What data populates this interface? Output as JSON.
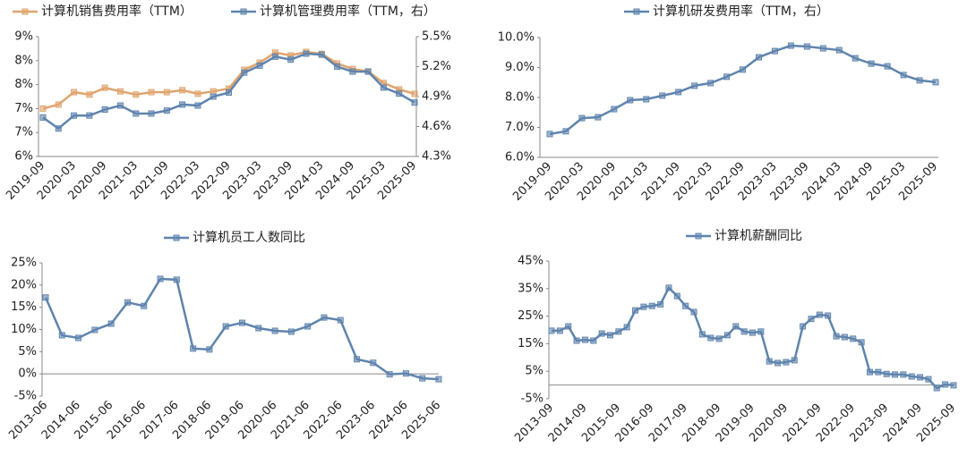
{
  "chart_data": [
    {
      "type": "line",
      "legend": "top",
      "categories": [
        "2019-09",
        null,
        "2020-03",
        null,
        "2020-09",
        null,
        "2021-03",
        null,
        "2021-09",
        null,
        "2022-03",
        null,
        "2022-09",
        null,
        "2023-03",
        null,
        "2023-09",
        null,
        "2024-03",
        null,
        "2024-09",
        null,
        "2025-03",
        null,
        "2025-09"
      ],
      "series": [
        {
          "name": "计算机销售费用率（TTM）",
          "color": "#e0a46e",
          "values": [
            7.2,
            7.3,
            7.61,
            7.55,
            7.72,
            7.63,
            7.55,
            7.61,
            7.61,
            7.66,
            7.57,
            7.63,
            7.7,
            8.17,
            8.35,
            8.6,
            8.53,
            8.62,
            8.57,
            8.33,
            8.19,
            8.13,
            7.84,
            7.68,
            7.57
          ]
        },
        {
          "name": "计算机管理费用率（TTM，右）",
          "color": "#5f84ad",
          "axis": "y2",
          "values": [
            4.69,
            4.58,
            4.71,
            4.71,
            4.77,
            4.81,
            4.73,
            4.73,
            4.76,
            4.82,
            4.81,
            4.9,
            4.94,
            5.14,
            5.21,
            5.3,
            5.27,
            5.33,
            5.32,
            5.2,
            5.15,
            5.15,
            4.99,
            4.93,
            4.84
          ]
        }
      ],
      "ylim": [
        6,
        9
      ],
      "yticks": [
        {
          "value": 6,
          "label": "6%"
        },
        {
          "value": 6.6,
          "label": "7%"
        },
        {
          "value": 7.2,
          "label": "7%"
        },
        {
          "value": 7.8,
          "label": "8%"
        },
        {
          "value": 8.4,
          "label": "8%"
        },
        {
          "value": 9,
          "label": "9%"
        }
      ],
      "y2lim": [
        4.3,
        5.5
      ],
      "y2ticks": [
        {
          "value": 4.3,
          "label": "4.3%"
        },
        {
          "value": 4.6,
          "label": "4.6%"
        },
        {
          "value": 4.9,
          "label": "4.9%"
        },
        {
          "value": 5.2,
          "label": "5.2%"
        },
        {
          "value": 5.5,
          "label": "5.5%"
        }
      ]
    },
    {
      "type": "line",
      "legend": "top",
      "categories": [
        "2019-09",
        null,
        "2020-03",
        null,
        "2020-09",
        null,
        "2021-03",
        null,
        "2021-09",
        null,
        "2022-03",
        null,
        "2022-09",
        null,
        "2023-03",
        null,
        "2023-09",
        null,
        "2024-03",
        null,
        "2024-09",
        null,
        "2025-03",
        null,
        "2025-09"
      ],
      "series": [
        {
          "name": "计算机研发费用率（TTM，右）",
          "color": "#5f84ad",
          "values": [
            6.78,
            6.87,
            7.31,
            7.34,
            7.61,
            7.91,
            7.94,
            8.06,
            8.18,
            8.39,
            8.48,
            8.69,
            8.93,
            9.34,
            9.55,
            9.73,
            9.7,
            9.64,
            9.58,
            9.31,
            9.13,
            9.04,
            8.75,
            8.57,
            8.51
          ]
        }
      ],
      "ylim": [
        6,
        10
      ],
      "yticks": [
        {
          "value": 6,
          "label": "6.0%"
        },
        {
          "value": 7,
          "label": "7.0%"
        },
        {
          "value": 8,
          "label": "8.0%"
        },
        {
          "value": 9,
          "label": "9.0%"
        },
        {
          "value": 10,
          "label": "10.0%"
        }
      ]
    },
    {
      "type": "line",
      "legend": "top",
      "categories": [
        "2013-06",
        null,
        "2014-06",
        null,
        "2015-06",
        null,
        "2016-06",
        null,
        "2017-06",
        null,
        "2018-06",
        null,
        "2019-06",
        null,
        "2020-06",
        null,
        "2021-06",
        null,
        "2022-06",
        null,
        "2023-06",
        null,
        "2024-06",
        null,
        "2025-06"
      ],
      "series": [
        {
          "name": "计算机员工人数同比",
          "color": "#5f84ad",
          "values": [
            17.2,
            8.7,
            8.1,
            9.9,
            11.3,
            16.1,
            15.3,
            21.4,
            21.2,
            5.7,
            5.5,
            10.7,
            11.5,
            10.3,
            9.7,
            9.5,
            10.7,
            12.7,
            12.1,
            3.3,
            2.5,
            -0.1,
            0.1,
            -1.0,
            -1.2
          ]
        }
      ],
      "ylim": [
        -5,
        25
      ],
      "yticks": [
        {
          "value": -5,
          "label": "-5%"
        },
        {
          "value": 0,
          "label": "0%"
        },
        {
          "value": 5,
          "label": "5%"
        },
        {
          "value": 10,
          "label": "10%"
        },
        {
          "value": 15,
          "label": "15%"
        },
        {
          "value": 20,
          "label": "20%"
        },
        {
          "value": 25,
          "label": "25%"
        }
      ]
    },
    {
      "type": "line",
      "legend": "top",
      "categories": [
        "2013-09",
        null,
        null,
        null,
        "2014-09",
        null,
        null,
        null,
        "2015-09",
        null,
        null,
        null,
        "2016-09",
        null,
        null,
        null,
        "2017-09",
        null,
        null,
        null,
        "2018-09",
        null,
        null,
        null,
        "2019-09",
        null,
        null,
        null,
        "2020-09",
        null,
        null,
        null,
        "2021-09",
        null,
        null,
        null,
        "2022-09",
        null,
        null,
        null,
        "2023-09",
        null,
        null,
        null,
        "2024-09",
        null,
        null,
        null,
        "2025-09"
      ],
      "series": [
        {
          "name": "计算机薪酬同比",
          "color": "#5f84ad",
          "values": [
            19.7,
            19.7,
            21.3,
            16.1,
            16.4,
            16.1,
            18.7,
            18.1,
            19.4,
            21.0,
            27.1,
            28.4,
            28.7,
            29.3,
            35.3,
            32.3,
            28.7,
            26.5,
            18.4,
            17.1,
            16.8,
            18.1,
            21.3,
            19.4,
            19.0,
            19.4,
            8.6,
            8.0,
            8.3,
            9.0,
            21.3,
            24.0,
            25.5,
            25.2,
            17.7,
            17.4,
            16.8,
            15.5,
            4.7,
            4.7,
            4.0,
            3.8,
            3.8,
            3.1,
            2.8,
            2.1,
            -1.1,
            0.2,
            -0.1
          ]
        }
      ],
      "ylim": [
        -5,
        45
      ],
      "yticks": [
        {
          "value": -5,
          "label": "-5%"
        },
        {
          "value": 5,
          "label": "5%"
        },
        {
          "value": 15,
          "label": "15%"
        },
        {
          "value": 25,
          "label": "25%"
        },
        {
          "value": 35,
          "label": "35%"
        },
        {
          "value": 45,
          "label": "45%"
        }
      ]
    }
  ]
}
